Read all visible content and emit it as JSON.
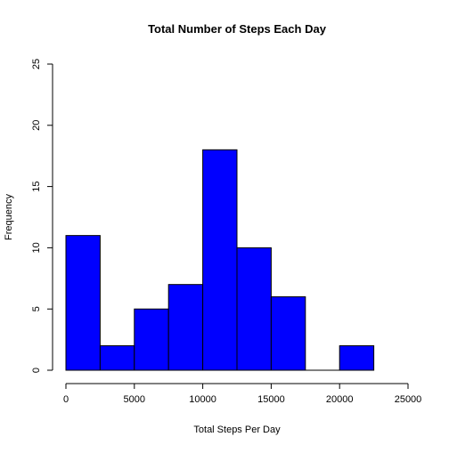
{
  "chart_data": {
    "type": "bar",
    "title": "Total Number of Steps Each Day",
    "xlabel": "Total Steps Per Day",
    "ylabel": "Frequency",
    "bins": [
      {
        "from": 0,
        "to": 2500,
        "count": 11
      },
      {
        "from": 2500,
        "to": 5000,
        "count": 2
      },
      {
        "from": 5000,
        "to": 7500,
        "count": 5
      },
      {
        "from": 7500,
        "to": 10000,
        "count": 7
      },
      {
        "from": 10000,
        "to": 12500,
        "count": 18
      },
      {
        "from": 12500,
        "to": 15000,
        "count": 10
      },
      {
        "from": 15000,
        "to": 17500,
        "count": 6
      },
      {
        "from": 17500,
        "to": 20000,
        "count": 0
      },
      {
        "from": 20000,
        "to": 22500,
        "count": 2
      }
    ],
    "xlim": [
      0,
      25000
    ],
    "ylim": [
      0,
      25
    ],
    "xticks": [
      "0",
      "5000",
      "10000",
      "15000",
      "20000",
      "25000"
    ],
    "yticks": [
      "0",
      "5",
      "10",
      "15",
      "20",
      "25"
    ],
    "grid": false,
    "bar_color": "#0000ff",
    "bar_edge_color": "#000000"
  }
}
